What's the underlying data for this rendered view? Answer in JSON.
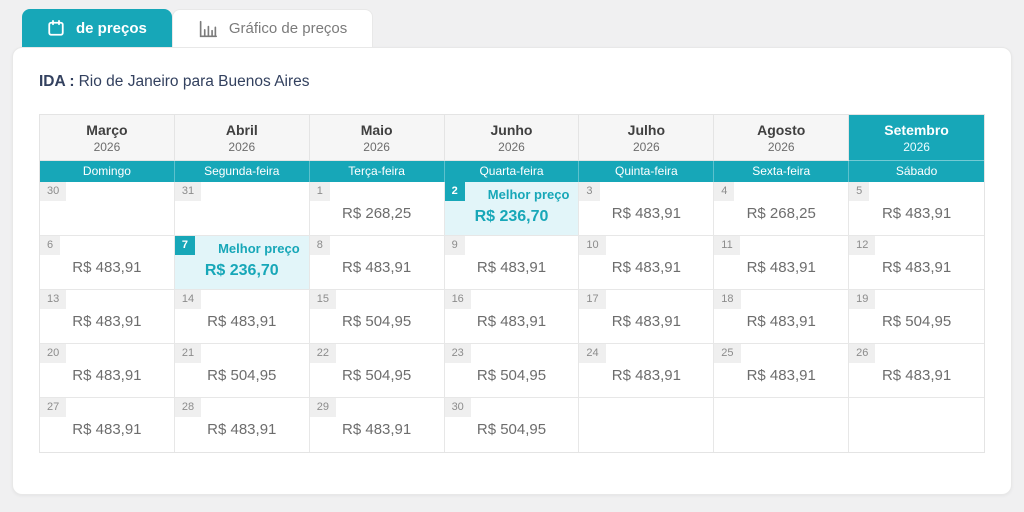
{
  "tabs": [
    {
      "label": "de preços",
      "icon": "calendar-icon",
      "active": true
    },
    {
      "label": "Gráfico de preços",
      "icon": "bar-chart-icon",
      "active": false
    }
  ],
  "header": {
    "direction_label": "IDA :",
    "route": "Rio de Janeiro para Buenos Aires"
  },
  "calendar": {
    "months": [
      {
        "name": "Março",
        "year": "2026",
        "selected": false
      },
      {
        "name": "Abril",
        "year": "2026",
        "selected": false
      },
      {
        "name": "Maio",
        "year": "2026",
        "selected": false
      },
      {
        "name": "Junho",
        "year": "2026",
        "selected": false
      },
      {
        "name": "Julho",
        "year": "2026",
        "selected": false
      },
      {
        "name": "Agosto",
        "year": "2026",
        "selected": false
      },
      {
        "name": "Setembro",
        "year": "2026",
        "selected": true
      }
    ],
    "weekdays": [
      "Domingo",
      "Segunda-feira",
      "Terça-feira",
      "Quarta-feira",
      "Quinta-feira",
      "Sexta-feira",
      "Sábado"
    ],
    "best_price_label": "Melhor preço",
    "rows": [
      [
        {
          "day": "30"
        },
        {
          "day": "31"
        },
        {
          "day": "1",
          "price": "R$ 268,25"
        },
        {
          "day": "2",
          "price": "R$ 236,70",
          "best": true
        },
        {
          "day": "3",
          "price": "R$ 483,91"
        },
        {
          "day": "4",
          "price": "R$ 268,25"
        },
        {
          "day": "5",
          "price": "R$ 483,91"
        }
      ],
      [
        {
          "day": "6",
          "price": "R$ 483,91"
        },
        {
          "day": "7",
          "price": "R$ 236,70",
          "best": true
        },
        {
          "day": "8",
          "price": "R$ 483,91"
        },
        {
          "day": "9",
          "price": "R$ 483,91"
        },
        {
          "day": "10",
          "price": "R$ 483,91"
        },
        {
          "day": "11",
          "price": "R$ 483,91"
        },
        {
          "day": "12",
          "price": "R$ 483,91"
        }
      ],
      [
        {
          "day": "13",
          "price": "R$ 483,91"
        },
        {
          "day": "14",
          "price": "R$ 483,91"
        },
        {
          "day": "15",
          "price": "R$ 504,95"
        },
        {
          "day": "16",
          "price": "R$ 483,91"
        },
        {
          "day": "17",
          "price": "R$ 483,91"
        },
        {
          "day": "18",
          "price": "R$ 483,91"
        },
        {
          "day": "19",
          "price": "R$ 504,95"
        }
      ],
      [
        {
          "day": "20",
          "price": "R$ 483,91"
        },
        {
          "day": "21",
          "price": "R$ 504,95"
        },
        {
          "day": "22",
          "price": "R$ 504,95"
        },
        {
          "day": "23",
          "price": "R$ 504,95"
        },
        {
          "day": "24",
          "price": "R$ 483,91"
        },
        {
          "day": "25",
          "price": "R$ 483,91"
        },
        {
          "day": "26",
          "price": "R$ 483,91"
        }
      ],
      [
        {
          "day": "27",
          "price": "R$ 483,91"
        },
        {
          "day": "28",
          "price": "R$ 483,91"
        },
        {
          "day": "29",
          "price": "R$ 483,91"
        },
        {
          "day": "30",
          "price": "R$ 504,95"
        },
        {},
        {},
        {}
      ]
    ]
  },
  "colors": {
    "accent": "#17a7b8",
    "best_cell_background": "#e2f5f9",
    "title_text": "#33415f"
  }
}
